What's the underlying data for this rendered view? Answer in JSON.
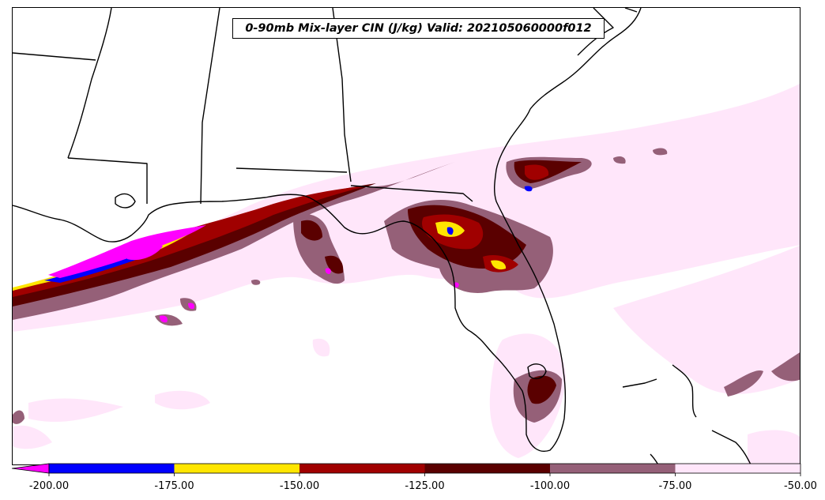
{
  "title": "0-90mb Mix-layer CIN (J/kg) Valid: 202105060000f012",
  "map": {
    "variable": "0-90mb Mix-layer CIN",
    "units": "J/kg",
    "valid": "202105060000f012",
    "region": "southeast-us-florida-gulf",
    "background_color": "#ffffff",
    "border_color": "#000000"
  },
  "colorbar": {
    "orientation": "horizontal",
    "extend": "min",
    "ticks": [
      "-200.00",
      "-175.00",
      "-150.00",
      "-125.00",
      "-100.00",
      "-75.00",
      "-50.00"
    ],
    "bins": [
      {
        "range": "< -200",
        "color": "#ff00ff"
      },
      {
        "range": "-200 to -175",
        "color": "#0000ff"
      },
      {
        "range": "-175 to -150",
        "color": "#ffe600"
      },
      {
        "range": "-150 to -125",
        "color": "#a00000"
      },
      {
        "range": "-125 to -100",
        "color": "#5a0000"
      },
      {
        "range": "-100 to -75",
        "color": "#956078"
      },
      {
        "range": "-75 to -50",
        "color": "#ffe6fa"
      }
    ]
  }
}
